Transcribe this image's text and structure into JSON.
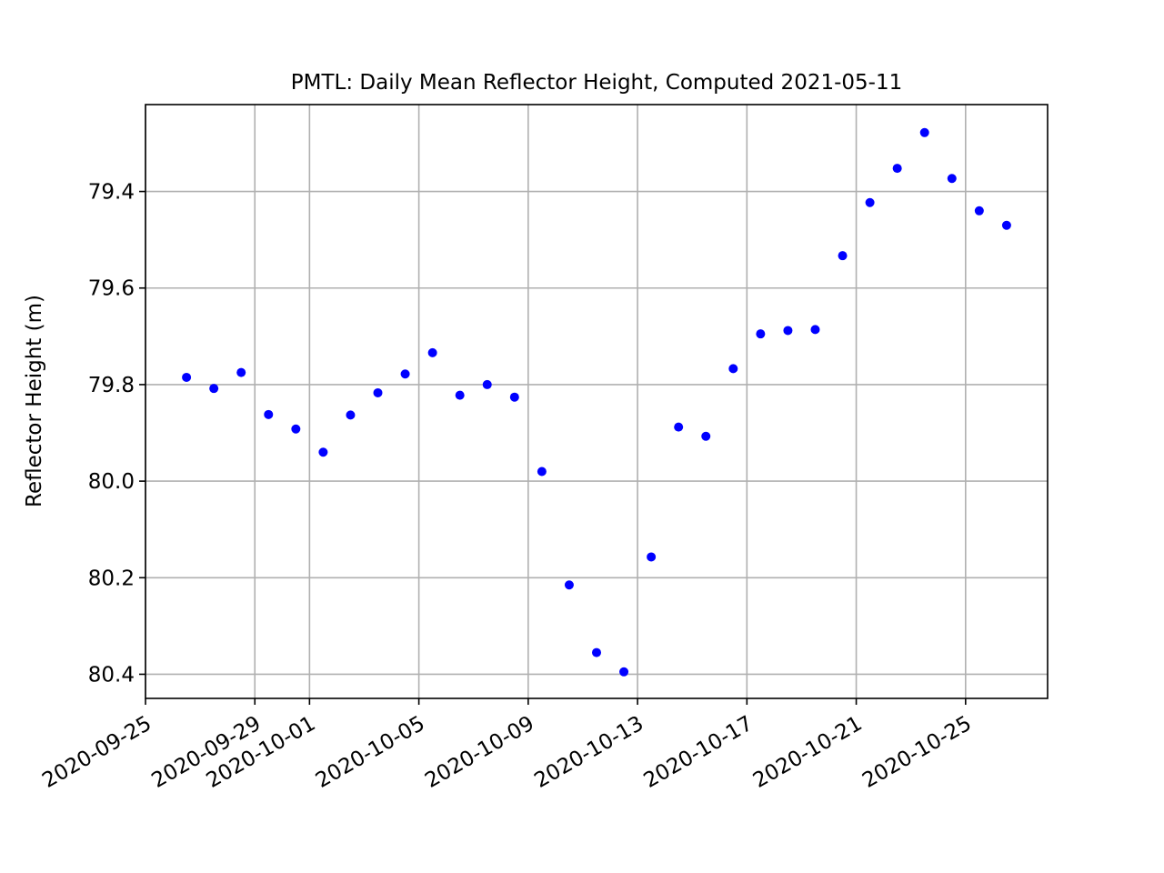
{
  "chart_data": {
    "type": "scatter",
    "title": "PMTL: Daily Mean Reflector Height, Computed 2021-05-11",
    "xlabel": "",
    "ylabel": "Reflector Height (m)",
    "y_inverted": true,
    "ylim": [
      80.45,
      79.22
    ],
    "xlim": [
      "2020-09-25",
      "2020-10-28T00:00"
    ],
    "grid": true,
    "marker_color": "#0000ff",
    "x_ticks": [
      "2020-09-25",
      "2020-09-29",
      "2020-10-01",
      "2020-10-05",
      "2020-10-09",
      "2020-10-13",
      "2020-10-17",
      "2020-10-21",
      "2020-10-25"
    ],
    "y_ticks": [
      79.4,
      79.6,
      79.8,
      80.0,
      80.2,
      80.4
    ],
    "y_tick_labels": [
      "79.4",
      "79.6",
      "79.8",
      "80.0",
      "80.2",
      "80.4"
    ],
    "series": [
      {
        "points": [
          {
            "x": "2020-09-26T12:00",
            "y": 79.785
          },
          {
            "x": "2020-09-27T12:00",
            "y": 79.808
          },
          {
            "x": "2020-09-28T12:00",
            "y": 79.775
          },
          {
            "x": "2020-09-29T12:00",
            "y": 79.862
          },
          {
            "x": "2020-09-30T12:00",
            "y": 79.892
          },
          {
            "x": "2020-10-01T12:00",
            "y": 79.94
          },
          {
            "x": "2020-10-02T12:00",
            "y": 79.863
          },
          {
            "x": "2020-10-03T12:00",
            "y": 79.817
          },
          {
            "x": "2020-10-04T12:00",
            "y": 79.778
          },
          {
            "x": "2020-10-05T12:00",
            "y": 79.734
          },
          {
            "x": "2020-10-06T12:00",
            "y": 79.822
          },
          {
            "x": "2020-10-07T12:00",
            "y": 79.8
          },
          {
            "x": "2020-10-08T12:00",
            "y": 79.826
          },
          {
            "x": "2020-10-09T12:00",
            "y": 79.98
          },
          {
            "x": "2020-10-10T12:00",
            "y": 80.215
          },
          {
            "x": "2020-10-11T12:00",
            "y": 80.355
          },
          {
            "x": "2020-10-12T12:00",
            "y": 80.395
          },
          {
            "x": "2020-10-13T12:00",
            "y": 80.157
          },
          {
            "x": "2020-10-14T12:00",
            "y": 79.888
          },
          {
            "x": "2020-10-15T12:00",
            "y": 79.907
          },
          {
            "x": "2020-10-16T12:00",
            "y": 79.767
          },
          {
            "x": "2020-10-17T12:00",
            "y": 79.695
          },
          {
            "x": "2020-10-18T12:00",
            "y": 79.688
          },
          {
            "x": "2020-10-19T12:00",
            "y": 79.686
          },
          {
            "x": "2020-10-20T12:00",
            "y": 79.533
          },
          {
            "x": "2020-10-21T12:00",
            "y": 79.423
          },
          {
            "x": "2020-10-22T12:00",
            "y": 79.352
          },
          {
            "x": "2020-10-23T12:00",
            "y": 79.278
          },
          {
            "x": "2020-10-24T12:00",
            "y": 79.373
          },
          {
            "x": "2020-10-25T12:00",
            "y": 79.44
          },
          {
            "x": "2020-10-26T12:00",
            "y": 79.47
          }
        ]
      }
    ]
  }
}
